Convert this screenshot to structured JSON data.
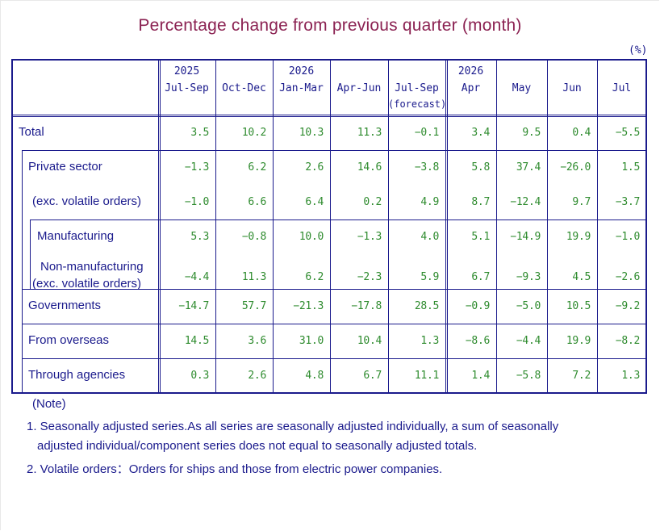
{
  "title": "Percentage change from previous quarter (month)",
  "unit": "(%)",
  "columns": [
    {
      "year": "2025",
      "label": "Jul-Sep",
      "note": ""
    },
    {
      "year": "",
      "label": "Oct-Dec",
      "note": ""
    },
    {
      "year": "2026",
      "label": "Jan-Mar",
      "note": ""
    },
    {
      "year": "",
      "label": "Apr-Jun",
      "note": ""
    },
    {
      "year": "",
      "label": "Jul-Sep",
      "note": "(forecast)"
    },
    {
      "year": "2026",
      "label": "Apr",
      "note": ""
    },
    {
      "year": "",
      "label": "May",
      "note": ""
    },
    {
      "year": "",
      "label": "Jun",
      "note": ""
    },
    {
      "year": "",
      "label": "Jul",
      "note": ""
    }
  ],
  "rows": [
    {
      "label": "Total",
      "values": [
        "3.5",
        "10.2",
        "10.3",
        "11.3",
        "-0.1",
        "3.4",
        "9.5",
        "0.4",
        "-5.5"
      ]
    },
    {
      "label": "Private sector",
      "values": [
        "-1.3",
        "6.2",
        "2.6",
        "14.6",
        "-3.8",
        "5.8",
        "37.4",
        "-26.0",
        "1.5"
      ]
    },
    {
      "label": "(exc. volatile orders)",
      "values": [
        "-1.0",
        "6.6",
        "6.4",
        "0.2",
        "4.9",
        "8.7",
        "-12.4",
        "9.7",
        "-3.7"
      ]
    },
    {
      "label": "Manufacturing",
      "values": [
        "5.3",
        "-0.8",
        "10.0",
        "-1.3",
        "4.0",
        "5.1",
        "-14.9",
        "19.9",
        "-1.0"
      ]
    },
    {
      "label": "Non-manufacturing",
      "label2": "(exc. volatile orders)",
      "values": [
        "-4.4",
        "11.3",
        "6.2",
        "-2.3",
        "5.9",
        "6.7",
        "-9.3",
        "4.5",
        "-2.6"
      ]
    },
    {
      "label": "Governments",
      "values": [
        "-14.7",
        "57.7",
        "-21.3",
        "-17.8",
        "28.5",
        "-0.9",
        "-5.0",
        "10.5",
        "-9.2"
      ]
    },
    {
      "label": "From overseas",
      "values": [
        "14.5",
        "3.6",
        "31.0",
        "10.4",
        "1.3",
        "-8.6",
        "-4.4",
        "19.9",
        "-8.2"
      ]
    },
    {
      "label": "Through agencies",
      "values": [
        "0.3",
        "2.6",
        "4.8",
        "6.7",
        "11.1",
        "1.4",
        "-5.8",
        "7.2",
        "1.3"
      ]
    }
  ],
  "notes": {
    "heading": "(Note)",
    "n1_line1": "1. Seasonally adjusted series.As all series are seasonally adjusted individually,  a sum of seasonally",
    "n1_line2": "adjusted individual/component series does not equal to seasonally adjusted totals.",
    "n2": "2. Volatile orders：Orders for ships and those from electric power companies."
  }
}
